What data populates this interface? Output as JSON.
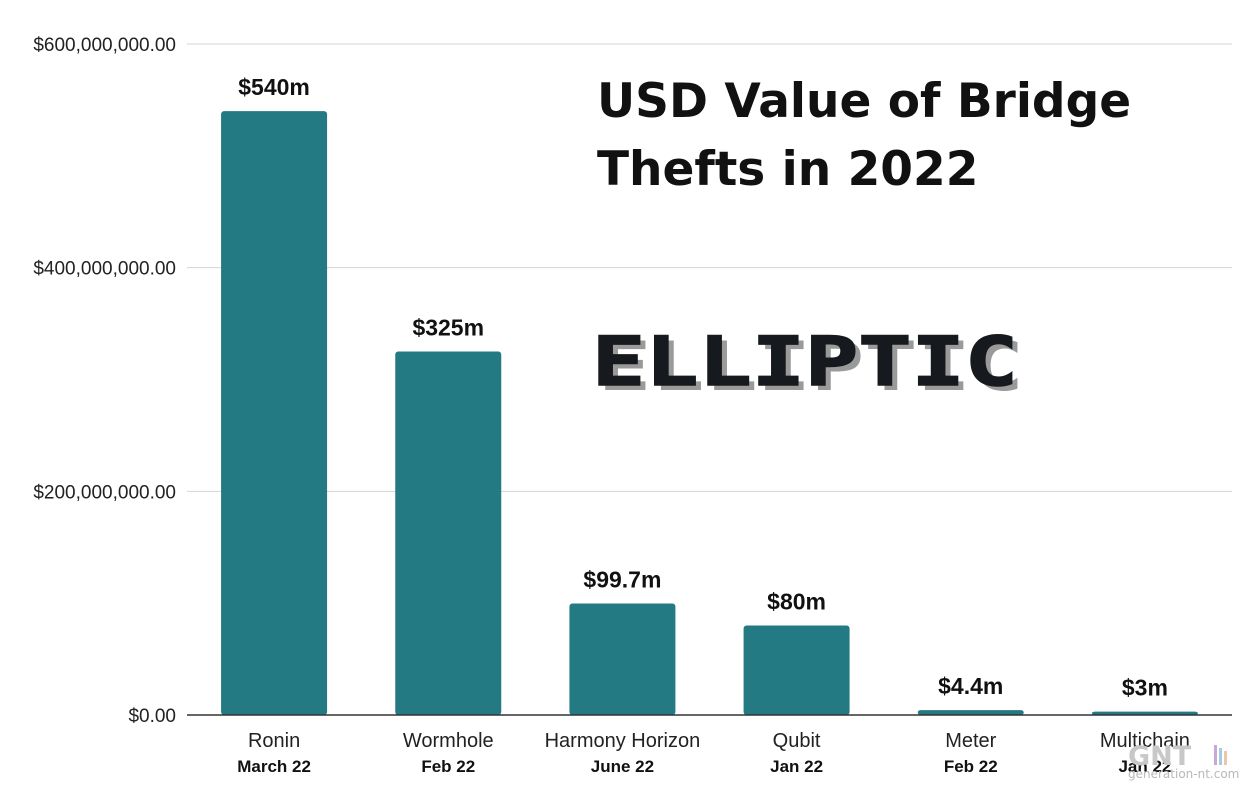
{
  "chart_data": {
    "type": "bar",
    "title_lines": [
      "USD Value of Bridge",
      "Thefts in 2022"
    ],
    "categories": [
      "Ronin",
      "Wormhole",
      "Harmony Horizon",
      "Qubit",
      "Meter",
      "Multichain"
    ],
    "dates": [
      "March 22",
      "Feb 22",
      "June 22",
      "Jan 22",
      "Feb 22",
      "Jan 22"
    ],
    "values": [
      540000000,
      325000000,
      99700000,
      80000000,
      4400000,
      3000000
    ],
    "data_labels": [
      "$540m",
      "$325m",
      "$99.7m",
      "$80m",
      "$4.4m",
      "$3m"
    ],
    "ylim": [
      0,
      600000000
    ],
    "yticks": [
      0,
      200000000,
      400000000,
      600000000
    ],
    "ytick_labels": [
      "$0.00",
      "$200,000,000.00",
      "$400,000,000.00",
      "$600,000,000.00"
    ],
    "grid": true,
    "bar_color": "#237a83",
    "xlabel": "",
    "ylabel": ""
  },
  "logo": {
    "text": "ELLIPTIC"
  },
  "watermark": {
    "text": "GNT",
    "subtext": "generation-nt.com"
  }
}
